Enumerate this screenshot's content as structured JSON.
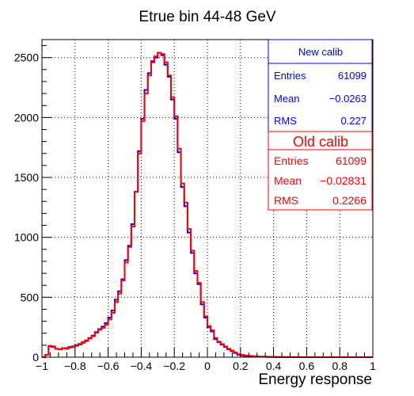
{
  "chart_data": {
    "type": "histogram",
    "title": "Etrue bin 44-48 GeV",
    "xlabel": "Energy response",
    "ylabel": "",
    "xlim": [
      -1,
      1
    ],
    "ylim": [
      0,
      2650
    ],
    "grid": true,
    "bin_width": 0.02,
    "x_ticks": [
      "-1",
      "-0.8",
      "-0.6",
      "-0.4",
      "-0.2",
      "0",
      "0.2",
      "0.4",
      "0.6",
      "0.8",
      "1"
    ],
    "y_ticks": [
      "0",
      "500",
      "1000",
      "1500",
      "2000",
      "2500"
    ],
    "colors": {
      "new": "#0000ff",
      "old": "#ff0000"
    },
    "series": [
      {
        "key": "new",
        "values": [
          0,
          20,
          90,
          85,
          70,
          65,
          75,
          75,
          85,
          90,
          100,
          110,
          125,
          140,
          160,
          180,
          210,
          235,
          255,
          285,
          330,
          390,
          480,
          550,
          650,
          810,
          930,
          1110,
          1380,
          1720,
          1990,
          2230,
          2370,
          2470,
          2500,
          2540,
          2520,
          2440,
          2340,
          2150,
          1990,
          1710,
          1420,
          1260,
          1040,
          870,
          700,
          610,
          440,
          330,
          250,
          215,
          150,
          125,
          105,
          85,
          65,
          50,
          35,
          20,
          15,
          10,
          10,
          8,
          6,
          5,
          4,
          3,
          2,
          2,
          2,
          1,
          1,
          1,
          1,
          1,
          0,
          0,
          0,
          0,
          0,
          0,
          0,
          0,
          0,
          0,
          0,
          0,
          0,
          0,
          0,
          0,
          0,
          0,
          0,
          0,
          0,
          0,
          0,
          0
        ]
      },
      {
        "key": "old",
        "values": [
          0,
          20,
          95,
          90,
          70,
          65,
          75,
          70,
          80,
          85,
          95,
          105,
          120,
          135,
          155,
          175,
          205,
          230,
          245,
          270,
          315,
          370,
          460,
          530,
          640,
          790,
          920,
          1090,
          1380,
          1700,
          1970,
          2200,
          2350,
          2460,
          2510,
          2540,
          2530,
          2460,
          2350,
          2170,
          2010,
          1740,
          1450,
          1290,
          1070,
          890,
          720,
          620,
          460,
          340,
          260,
          225,
          160,
          130,
          110,
          90,
          70,
          55,
          40,
          25,
          20,
          15,
          12,
          10,
          8,
          6,
          5,
          4,
          3,
          3,
          2,
          2,
          2,
          1,
          1,
          1,
          1,
          1,
          1,
          0,
          0,
          0,
          0,
          0,
          0,
          0,
          0,
          0,
          0,
          0,
          0,
          0,
          0,
          0,
          0,
          0,
          0,
          0,
          0,
          0
        ]
      }
    ]
  },
  "stats_new": {
    "title": "New calib",
    "rows": [
      {
        "label": "Entries",
        "value": "61099"
      },
      {
        "label": "Mean",
        "value": "−0.0263"
      },
      {
        "label": "RMS",
        "value": "0.227"
      }
    ]
  },
  "stats_old": {
    "title": "Old calib",
    "rows": [
      {
        "label": "Entries",
        "value": "61099"
      },
      {
        "label": "Mean",
        "value": "−0.02831"
      },
      {
        "label": "RMS",
        "value": "0.2266"
      }
    ]
  }
}
